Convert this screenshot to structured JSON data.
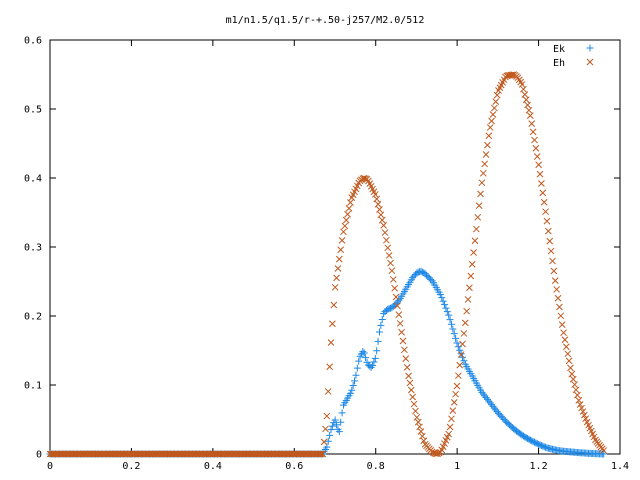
{
  "chart_data": {
    "type": "scatter",
    "title": "m1/n1.5/q1.5/r-+.50-j257/M2.0/512",
    "xlabel": "",
    "ylabel": "",
    "xlim": [
      0,
      1.4
    ],
    "ylim": [
      0,
      0.6
    ],
    "x_ticks": [
      0,
      0.2,
      0.4,
      0.6,
      0.8,
      1,
      1.2,
      1.4
    ],
    "x_tick_labels": [
      "0",
      "0.2",
      "0.4",
      "0.6",
      "0.8",
      "1",
      "1.2",
      "1.4"
    ],
    "y_ticks": [
      0,
      0.1,
      0.2,
      0.3,
      0.4,
      0.5,
      0.6
    ],
    "y_tick_labels": [
      "0",
      "0.1",
      "0.2",
      "0.3",
      "0.4",
      "0.5",
      "0.6"
    ],
    "grid": false,
    "legend_position": "top-right",
    "series": [
      {
        "name": "Ek",
        "marker": "plus",
        "color": "#1e88e5",
        "x": [
          0,
          0.67,
          0.68,
          0.69,
          0.7,
          0.71,
          0.72,
          0.73,
          0.74,
          0.75,
          0.76,
          0.77,
          0.78,
          0.79,
          0.8,
          0.81,
          0.82,
          0.83,
          0.84,
          0.85,
          0.86,
          0.87,
          0.88,
          0.89,
          0.9,
          0.91,
          0.92,
          0.94,
          0.96,
          0.98,
          1.0,
          1.02,
          1.04,
          1.06,
          1.08,
          1.1,
          1.12,
          1.14,
          1.16,
          1.18,
          1.2,
          1.22,
          1.24,
          1.26,
          1.28,
          1.3,
          1.32,
          1.34,
          1.36
        ],
        "y": [
          0,
          0,
          0.01,
          0.035,
          0.05,
          0.03,
          0.07,
          0.08,
          0.09,
          0.11,
          0.14,
          0.15,
          0.13,
          0.125,
          0.14,
          0.18,
          0.205,
          0.21,
          0.212,
          0.218,
          0.225,
          0.235,
          0.245,
          0.255,
          0.262,
          0.265,
          0.262,
          0.25,
          0.23,
          0.2,
          0.16,
          0.13,
          0.11,
          0.09,
          0.075,
          0.06,
          0.047,
          0.036,
          0.027,
          0.02,
          0.014,
          0.009,
          0.006,
          0.004,
          0.003,
          0.002,
          0.001,
          0.0005,
          0
        ]
      },
      {
        "name": "Eh",
        "marker": "cross",
        "color": "#c0581e",
        "x": [
          0,
          0.67,
          0.68,
          0.69,
          0.7,
          0.72,
          0.74,
          0.76,
          0.77,
          0.78,
          0.8,
          0.82,
          0.84,
          0.86,
          0.88,
          0.9,
          0.92,
          0.94,
          0.95,
          0.96,
          0.98,
          1.0,
          1.02,
          1.04,
          1.06,
          1.08,
          1.1,
          1.12,
          1.14,
          1.15,
          1.16,
          1.18,
          1.2,
          1.22,
          1.24,
          1.26,
          1.28,
          1.3,
          1.32,
          1.34,
          1.36
        ],
        "y": [
          0,
          0,
          0.055,
          0.16,
          0.24,
          0.32,
          0.37,
          0.395,
          0.4,
          0.398,
          0.375,
          0.33,
          0.265,
          0.19,
          0.115,
          0.055,
          0.015,
          0.002,
          0,
          0.003,
          0.03,
          0.1,
          0.19,
          0.29,
          0.39,
          0.47,
          0.525,
          0.548,
          0.55,
          0.545,
          0.535,
          0.49,
          0.42,
          0.34,
          0.255,
          0.18,
          0.12,
          0.075,
          0.045,
          0.02,
          0.005
        ]
      }
    ]
  }
}
